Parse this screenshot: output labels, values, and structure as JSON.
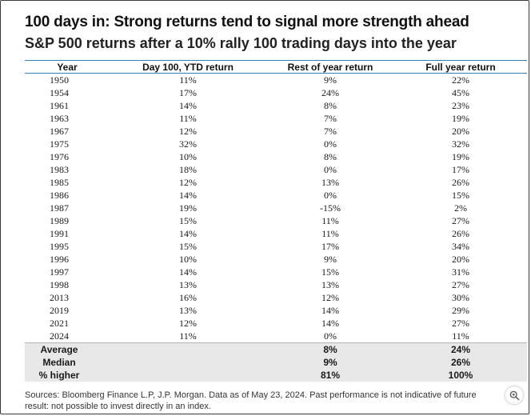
{
  "title": "100 days in: Strong returns tend to signal more strength ahead",
  "subtitle": "S&P 500 returns after a 10% rally 100 trading days into the year",
  "chart_data": {
    "type": "table",
    "columns": [
      "Year",
      "Day 100, YTD return",
      "Rest of year return",
      "Full year return"
    ],
    "rows": [
      [
        "1950",
        "11%",
        "9%",
        "22%"
      ],
      [
        "1954",
        "17%",
        "24%",
        "45%"
      ],
      [
        "1961",
        "14%",
        "8%",
        "23%"
      ],
      [
        "1963",
        "11%",
        "7%",
        "19%"
      ],
      [
        "1967",
        "12%",
        "7%",
        "20%"
      ],
      [
        "1975",
        "32%",
        "0%",
        "32%"
      ],
      [
        "1976",
        "10%",
        "8%",
        "19%"
      ],
      [
        "1983",
        "18%",
        "0%",
        "17%"
      ],
      [
        "1985",
        "12%",
        "13%",
        "26%"
      ],
      [
        "1986",
        "14%",
        "0%",
        "15%"
      ],
      [
        "1987",
        "19%",
        "-15%",
        "2%"
      ],
      [
        "1989",
        "15%",
        "11%",
        "27%"
      ],
      [
        "1991",
        "14%",
        "11%",
        "26%"
      ],
      [
        "1995",
        "15%",
        "17%",
        "34%"
      ],
      [
        "1996",
        "10%",
        "9%",
        "20%"
      ],
      [
        "1997",
        "14%",
        "15%",
        "31%"
      ],
      [
        "1998",
        "13%",
        "13%",
        "27%"
      ],
      [
        "2013",
        "16%",
        "12%",
        "30%"
      ],
      [
        "2019",
        "13%",
        "14%",
        "29%"
      ],
      [
        "2021",
        "12%",
        "14%",
        "27%"
      ],
      [
        "2024",
        "11%",
        "0%",
        "11%"
      ]
    ],
    "summary": [
      [
        "Average",
        "",
        "8%",
        "24%"
      ],
      [
        "Median",
        "",
        "9%",
        "26%"
      ],
      [
        "% higher",
        "",
        "81%",
        "100%"
      ]
    ]
  },
  "source": "Sources: Bloomberg Finance L.P, J.P. Morgan. Data as of May 23, 2024. Past performance is not indicative of future result: not possible to invest directly in an index.",
  "icons": {
    "zoom": "magnifier-plus-icon"
  },
  "colors": {
    "header_rule": "#2e7fb8",
    "summary_bg": "#e8e8e8"
  }
}
